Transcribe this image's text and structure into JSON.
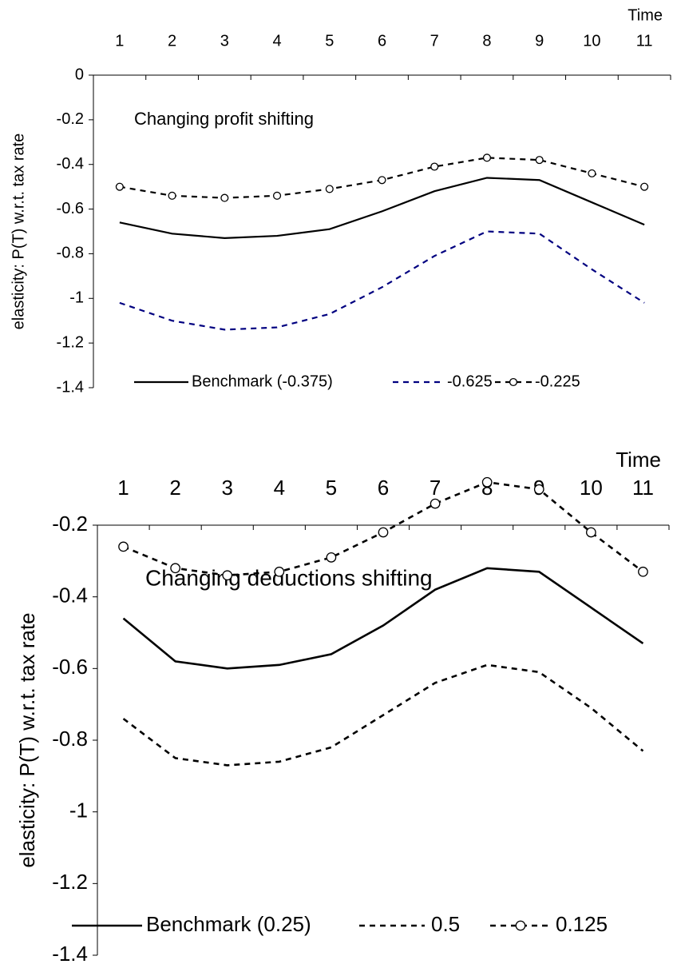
{
  "chart_data": [
    {
      "type": "line",
      "x_label": "Time",
      "y_label": "elasticity: P(T) w.r.t. tax rate",
      "annotation": "Changing profit shifting",
      "categories": [
        "1",
        "2",
        "3",
        "4",
        "5",
        "6",
        "7",
        "8",
        "9",
        "10",
        "11"
      ],
      "ylim": [
        -1.4,
        0
      ],
      "yticks": [
        0,
        -0.2,
        -0.4,
        -0.6,
        -0.8,
        -1,
        -1.2,
        -1.4
      ],
      "series": [
        {
          "name": "Benchmark (-0.375)",
          "color": "#000000",
          "line_style": "solid",
          "values": [
            -0.66,
            -0.71,
            -0.73,
            -0.72,
            -0.69,
            -0.61,
            -0.52,
            -0.46,
            -0.47,
            -0.57,
            -0.67
          ]
        },
        {
          "name": "-0.625",
          "color": "#000080",
          "line_style": "dashed",
          "values": [
            -1.02,
            -1.1,
            -1.14,
            -1.13,
            -1.07,
            -0.95,
            -0.81,
            -0.7,
            -0.71,
            -0.87,
            -1.02
          ]
        },
        {
          "name": "-0.225",
          "color": "#000000",
          "line_style": "dashed",
          "marker": "circle",
          "values": [
            -0.5,
            -0.54,
            -0.55,
            -0.54,
            -0.51,
            -0.47,
            -0.41,
            -0.37,
            -0.38,
            -0.44,
            -0.5
          ]
        }
      ]
    },
    {
      "type": "line",
      "x_label": "Time",
      "y_label": "elasticity: P(T) w.r.t. tax rate",
      "annotation": "Changing deductions shifting",
      "categories": [
        "1",
        "2",
        "3",
        "4",
        "5",
        "6",
        "7",
        "8",
        "9",
        "10",
        "11"
      ],
      "ylim": [
        -1.4,
        -0.2
      ],
      "yticks": [
        -0.2,
        -0.4,
        -0.6,
        -0.8,
        -1,
        -1.2,
        -1.4
      ],
      "series": [
        {
          "name": "Benchmark (0.25)",
          "color": "#000000",
          "line_style": "solid",
          "values": [
            -0.46,
            -0.58,
            -0.6,
            -0.59,
            -0.56,
            -0.48,
            -0.38,
            -0.32,
            -0.33,
            -0.43,
            -0.53
          ]
        },
        {
          "name": "0.5",
          "color": "#000000",
          "line_style": "dashed",
          "values": [
            -0.74,
            -0.85,
            -0.87,
            -0.86,
            -0.82,
            -0.73,
            -0.64,
            -0.59,
            -0.61,
            -0.71,
            -0.83
          ]
        },
        {
          "name": "0.125",
          "color": "#000000",
          "line_style": "dashed",
          "marker": "circle",
          "values": [
            -0.26,
            -0.32,
            -0.34,
            -0.33,
            -0.29,
            -0.22,
            -0.14,
            -0.08,
            -0.1,
            -0.22,
            -0.33
          ]
        }
      ]
    }
  ]
}
